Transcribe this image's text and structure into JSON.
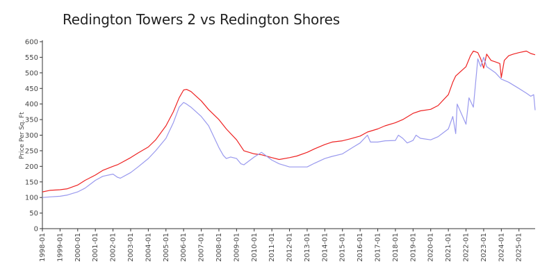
{
  "chart_data": {
    "type": "line",
    "title": "Redington Towers 2 vs Redington Shores",
    "ylabel": "Price Per Sq. Ft",
    "xlabel": "",
    "ylim": [
      0,
      600
    ],
    "xlim": [
      "1998-01",
      "2025-12"
    ],
    "yticks": [
      0,
      50,
      100,
      150,
      200,
      250,
      300,
      350,
      400,
      450,
      500,
      550,
      600
    ],
    "xticks": [
      "1998-01",
      "1999-01",
      "2000-01",
      "2001-01",
      "2002-01",
      "2003-01",
      "2004-01",
      "2005-01",
      "2006-01",
      "2007-01",
      "2008-01",
      "2009-01",
      "2010-01",
      "2011-01",
      "2012-01",
      "2013-01",
      "2014-01",
      "2015-01",
      "2016-01",
      "2017-01",
      "2018-01",
      "2019-01",
      "2020-01",
      "2021-01",
      "2022-01",
      "2023-01",
      "2024-01",
      "2025-01"
    ],
    "grid": false,
    "legend": "none",
    "series": [
      {
        "color": "#ee2222",
        "points": [
          [
            "1998-01",
            118
          ],
          [
            "1998-06",
            123
          ],
          [
            "1999-01",
            125
          ],
          [
            "1999-06",
            128
          ],
          [
            "2000-01",
            140
          ],
          [
            "2000-06",
            155
          ],
          [
            "2001-01",
            172
          ],
          [
            "2001-06",
            187
          ],
          [
            "2002-01",
            200
          ],
          [
            "2002-04",
            205
          ],
          [
            "2002-06",
            210
          ],
          [
            "2003-01",
            228
          ],
          [
            "2003-06",
            243
          ],
          [
            "2004-01",
            262
          ],
          [
            "2004-06",
            285
          ],
          [
            "2005-01",
            330
          ],
          [
            "2005-06",
            375
          ],
          [
            "2005-10",
            420
          ],
          [
            "2006-01",
            445
          ],
          [
            "2006-03",
            447
          ],
          [
            "2006-06",
            440
          ],
          [
            "2007-01",
            410
          ],
          [
            "2007-06",
            382
          ],
          [
            "2008-01",
            350
          ],
          [
            "2008-06",
            320
          ],
          [
            "2009-01",
            285
          ],
          [
            "2009-06",
            250
          ],
          [
            "2010-01",
            240
          ],
          [
            "2010-06",
            237
          ],
          [
            "2011-01",
            228
          ],
          [
            "2011-06",
            222
          ],
          [
            "2012-01",
            228
          ],
          [
            "2012-06",
            233
          ],
          [
            "2013-01",
            245
          ],
          [
            "2013-06",
            256
          ],
          [
            "2014-01",
            270
          ],
          [
            "2014-06",
            278
          ],
          [
            "2015-01",
            282
          ],
          [
            "2015-06",
            288
          ],
          [
            "2016-01",
            297
          ],
          [
            "2016-06",
            310
          ],
          [
            "2017-01",
            320
          ],
          [
            "2017-06",
            330
          ],
          [
            "2018-01",
            340
          ],
          [
            "2018-06",
            350
          ],
          [
            "2019-01",
            370
          ],
          [
            "2019-06",
            378
          ],
          [
            "2020-01",
            383
          ],
          [
            "2020-06",
            395
          ],
          [
            "2021-01",
            430
          ],
          [
            "2021-04",
            470
          ],
          [
            "2021-06",
            490
          ],
          [
            "2022-01",
            520
          ],
          [
            "2022-04",
            555
          ],
          [
            "2022-06",
            570
          ],
          [
            "2022-09",
            565
          ],
          [
            "2022-11",
            545
          ],
          [
            "2023-01",
            515
          ],
          [
            "2023-03",
            560
          ],
          [
            "2023-06",
            540
          ],
          [
            "2023-09",
            535
          ],
          [
            "2023-12",
            530
          ],
          [
            "2024-01",
            485
          ],
          [
            "2024-03",
            540
          ],
          [
            "2024-06",
            555
          ],
          [
            "2024-09",
            560
          ],
          [
            "2025-01",
            565
          ],
          [
            "2025-06",
            570
          ],
          [
            "2025-09",
            562
          ],
          [
            "2025-12",
            558
          ]
        ]
      },
      {
        "color": "#9999ee",
        "points": [
          [
            "1998-01",
            100
          ],
          [
            "1998-06",
            102
          ],
          [
            "1999-01",
            104
          ],
          [
            "1999-06",
            108
          ],
          [
            "2000-01",
            118
          ],
          [
            "2000-06",
            130
          ],
          [
            "2001-01",
            155
          ],
          [
            "2001-06",
            168
          ],
          [
            "2002-01",
            175
          ],
          [
            "2002-04",
            165
          ],
          [
            "2002-06",
            162
          ],
          [
            "2003-01",
            180
          ],
          [
            "2003-06",
            198
          ],
          [
            "2004-01",
            225
          ],
          [
            "2004-06",
            250
          ],
          [
            "2005-01",
            290
          ],
          [
            "2005-06",
            340
          ],
          [
            "2005-10",
            390
          ],
          [
            "2006-01",
            405
          ],
          [
            "2006-03",
            400
          ],
          [
            "2006-06",
            390
          ],
          [
            "2007-01",
            360
          ],
          [
            "2007-06",
            330
          ],
          [
            "2008-01",
            260
          ],
          [
            "2008-04",
            235
          ],
          [
            "2008-06",
            225
          ],
          [
            "2008-09",
            230
          ],
          [
            "2009-01",
            225
          ],
          [
            "2009-04",
            208
          ],
          [
            "2009-06",
            205
          ],
          [
            "2010-01",
            230
          ],
          [
            "2010-06",
            245
          ],
          [
            "2011-01",
            220
          ],
          [
            "2011-06",
            208
          ],
          [
            "2012-01",
            198
          ],
          [
            "2012-06",
            198
          ],
          [
            "2013-01",
            198
          ],
          [
            "2013-06",
            210
          ],
          [
            "2014-01",
            225
          ],
          [
            "2014-06",
            232
          ],
          [
            "2015-01",
            240
          ],
          [
            "2015-06",
            255
          ],
          [
            "2016-01",
            275
          ],
          [
            "2016-06",
            300
          ],
          [
            "2016-08",
            278
          ],
          [
            "2017-01",
            278
          ],
          [
            "2017-06",
            282
          ],
          [
            "2018-01",
            283
          ],
          [
            "2018-03",
            300
          ],
          [
            "2018-06",
            290
          ],
          [
            "2018-09",
            275
          ],
          [
            "2019-01",
            283
          ],
          [
            "2019-03",
            300
          ],
          [
            "2019-06",
            290
          ],
          [
            "2020-01",
            285
          ],
          [
            "2020-06",
            295
          ],
          [
            "2021-01",
            320
          ],
          [
            "2021-04",
            360
          ],
          [
            "2021-06",
            305
          ],
          [
            "2021-07",
            400
          ],
          [
            "2022-01",
            335
          ],
          [
            "2022-03",
            420
          ],
          [
            "2022-06",
            390
          ],
          [
            "2022-09",
            545
          ],
          [
            "2022-11",
            520
          ],
          [
            "2023-01",
            550
          ],
          [
            "2023-03",
            520
          ],
          [
            "2023-06",
            510
          ],
          [
            "2023-09",
            500
          ],
          [
            "2024-01",
            480
          ],
          [
            "2024-06",
            470
          ],
          [
            "2025-01",
            450
          ],
          [
            "2025-06",
            435
          ],
          [
            "2025-09",
            425
          ],
          [
            "2025-11",
            430
          ],
          [
            "2025-12",
            380
          ]
        ]
      }
    ]
  }
}
